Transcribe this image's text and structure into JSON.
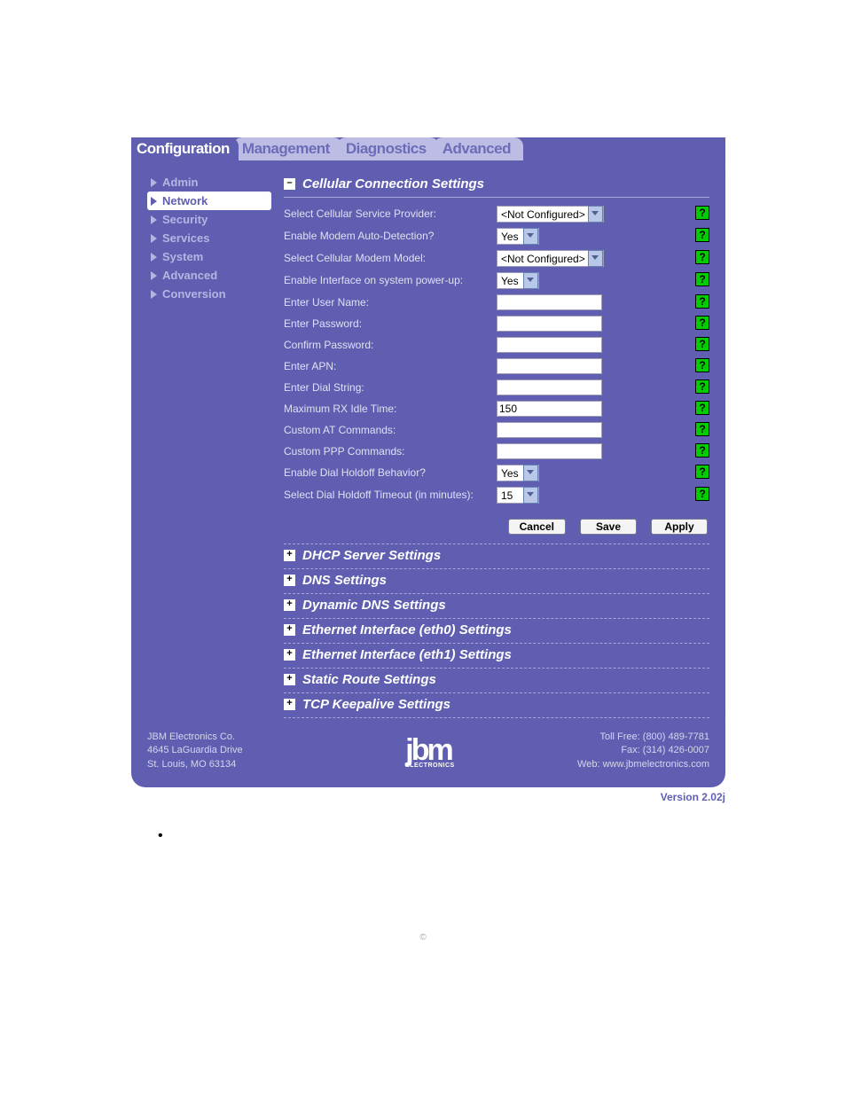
{
  "colors": {
    "panel": "#5f5eb0",
    "inactive_tab": "#bcbce4",
    "text_light": "#e0e0f4",
    "nav_inactive": "#b5b5e3",
    "help_bg": "#00cc00"
  },
  "tabs": [
    "Configuration",
    "Management",
    "Diagnostics",
    "Advanced"
  ],
  "active_tab": 0,
  "sidebar": {
    "items": [
      "Admin",
      "Network",
      "Security",
      "Services",
      "System",
      "Advanced",
      "Conversion"
    ],
    "active": 1
  },
  "sections": {
    "cellular": {
      "title": "Cellular Connection Settings",
      "expanded": true,
      "fields": [
        {
          "label": "Select Cellular Service Provider:",
          "type": "select-wide",
          "value": "<Not Configured>"
        },
        {
          "label": "Enable Modem Auto-Detection?",
          "type": "select-narrow",
          "value": "Yes"
        },
        {
          "label": "Select Cellular Modem Model:",
          "type": "select-wide",
          "value": "<Not Configured>"
        },
        {
          "label": "Enable Interface on system power-up:",
          "type": "select-narrow",
          "value": "Yes"
        },
        {
          "label": "Enter User Name:",
          "type": "text",
          "value": ""
        },
        {
          "label": "Enter Password:",
          "type": "password",
          "value": ""
        },
        {
          "label": "Confirm Password:",
          "type": "password",
          "value": ""
        },
        {
          "label": "Enter APN:",
          "type": "text",
          "value": ""
        },
        {
          "label": "Enter Dial String:",
          "type": "text",
          "value": ""
        },
        {
          "label": "Maximum RX Idle Time:",
          "type": "text",
          "value": "150"
        },
        {
          "label": "Custom AT Commands:",
          "type": "text",
          "value": ""
        },
        {
          "label": "Custom PPP Commands:",
          "type": "text",
          "value": ""
        },
        {
          "label": "Enable Dial Holdoff Behavior?",
          "type": "select-narrow",
          "value": "Yes"
        },
        {
          "label": "Select Dial Holdoff Timeout (in minutes):",
          "type": "select-narrow",
          "value": "15"
        }
      ]
    },
    "collapsed": [
      "DHCP Server Settings",
      "DNS Settings",
      "Dynamic DNS Settings",
      "Ethernet Interface (eth0) Settings",
      "Ethernet Interface (eth1) Settings",
      "Static Route Settings",
      "TCP Keepalive Settings"
    ]
  },
  "buttons": {
    "cancel": "Cancel",
    "save": "Save",
    "apply": "Apply"
  },
  "footer": {
    "company": "JBM Electronics Co.",
    "addr1": "4645 LaGuardia Drive",
    "addr2": "St. Louis, MO 63134",
    "tollfree": "Toll Free: (800) 489-7781",
    "fax": "Fax: (314) 426-0007",
    "web": "Web: www.jbmelectronics.com",
    "logo_main": "jbm",
    "logo_sub": "ELECTRONICS"
  },
  "version": "Version 2.02j",
  "bullet": "•",
  "copyright": "©"
}
